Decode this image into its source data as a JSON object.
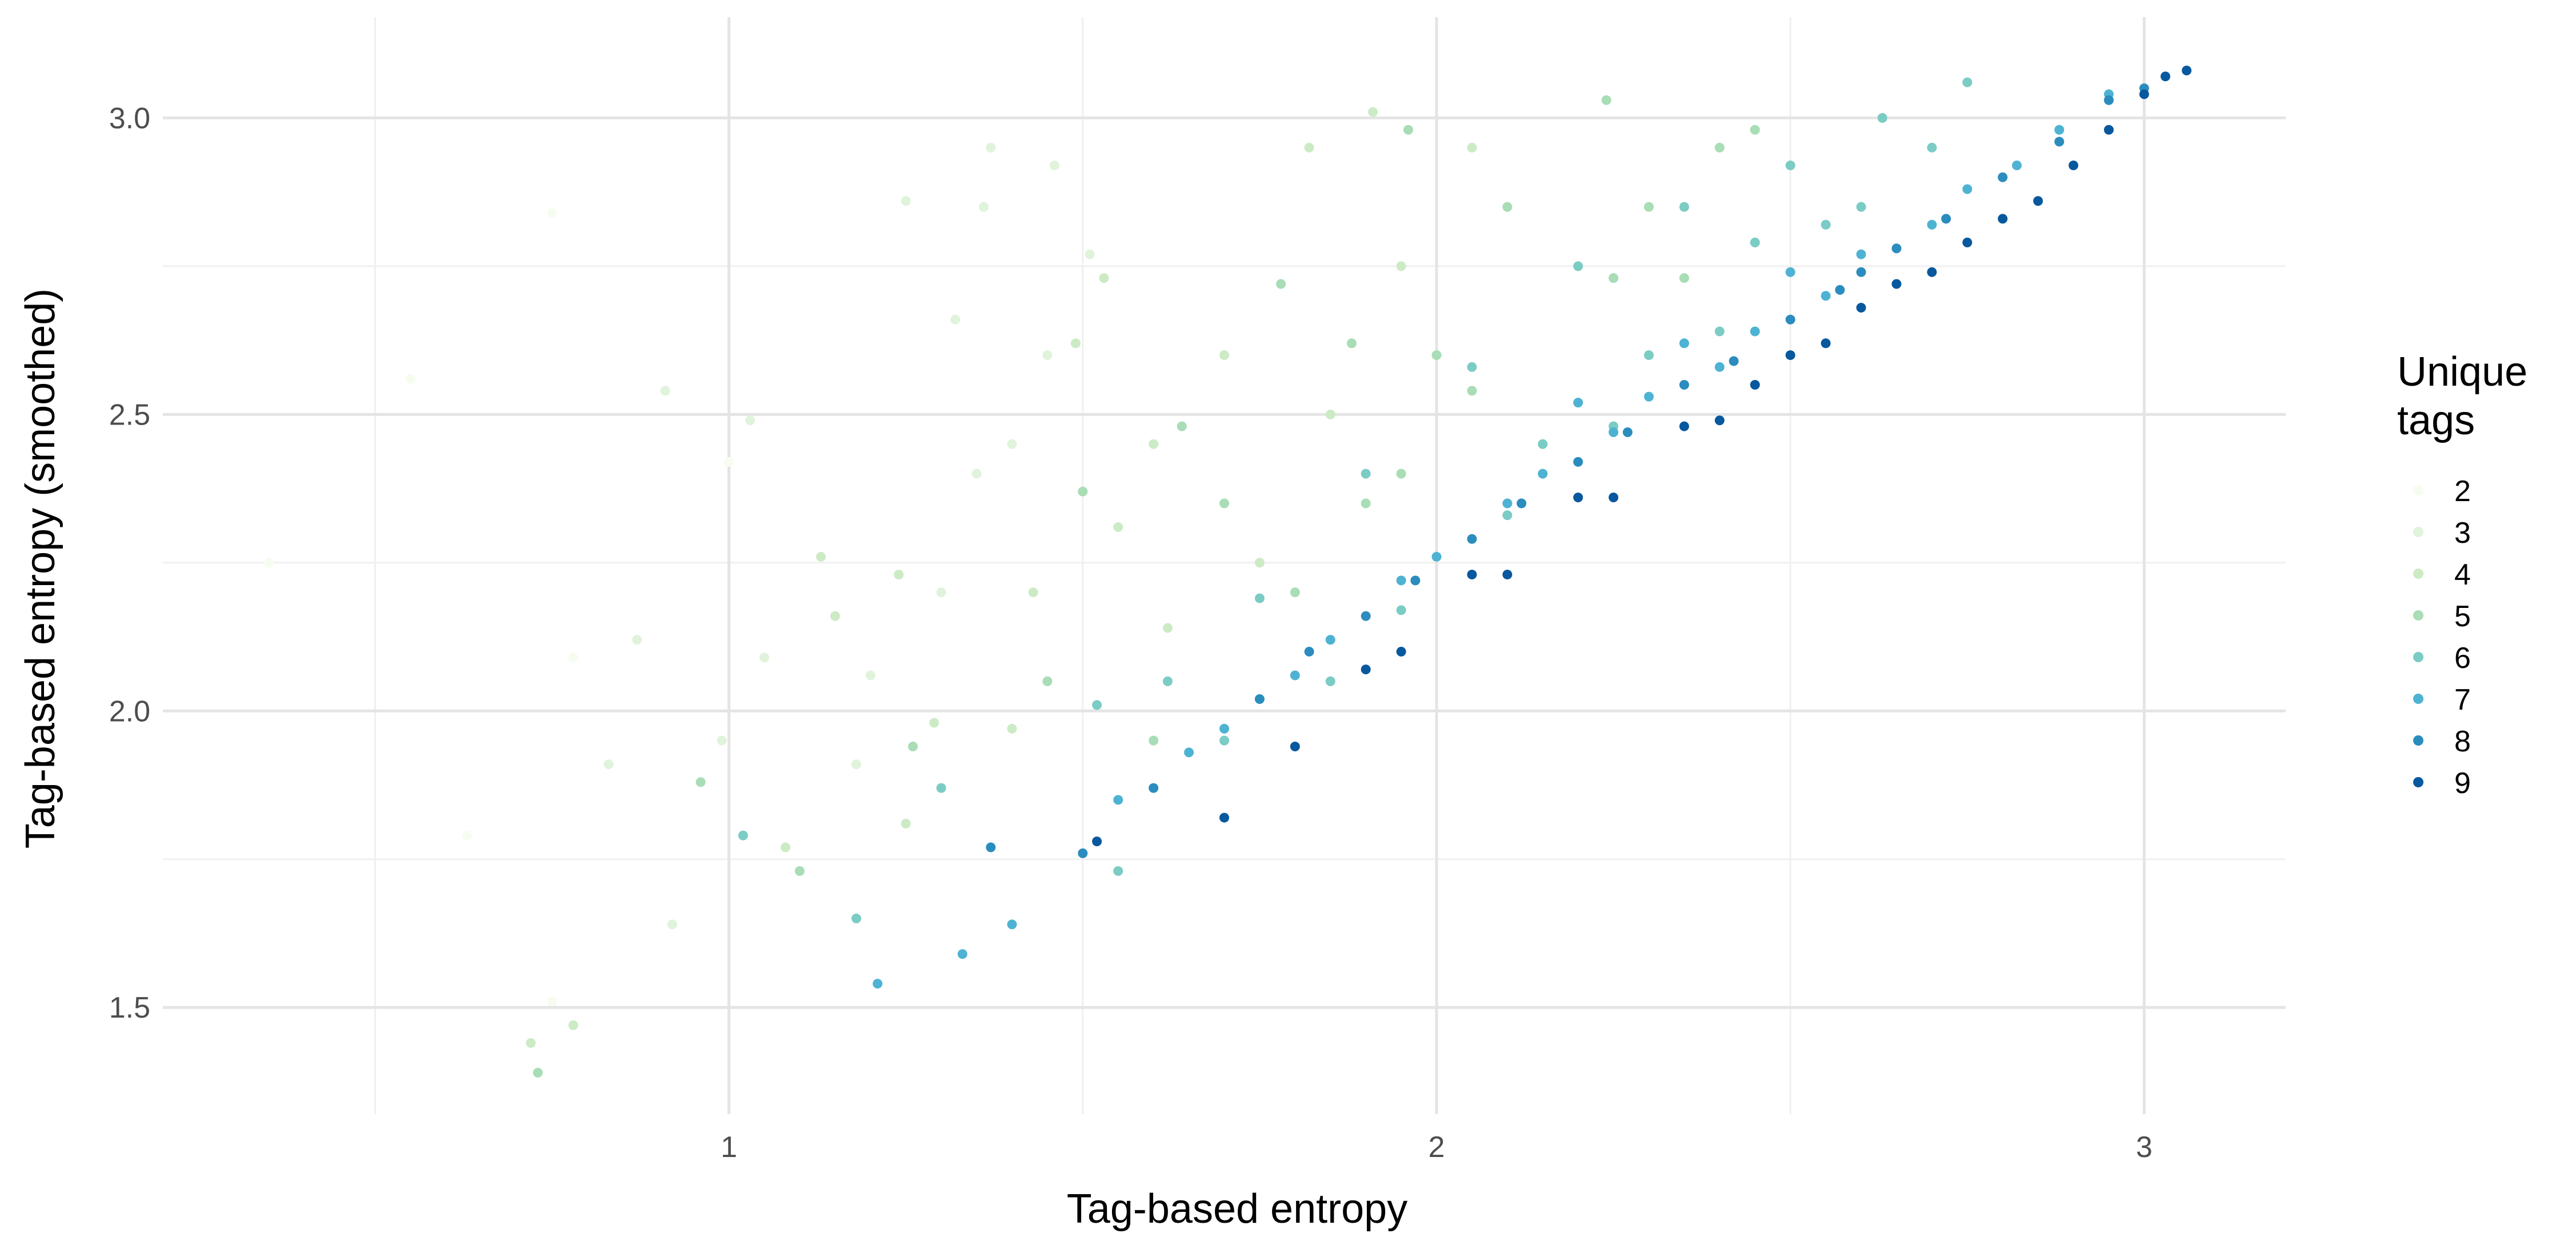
{
  "chart_data": {
    "type": "scatter",
    "title": "",
    "xlabel": "Tag-based entropy",
    "ylabel": "Tag-based entropy (smoothed)",
    "x_ticks": [
      1,
      2,
      3
    ],
    "y_ticks": [
      1.5,
      2.0,
      2.5,
      3.0
    ],
    "y_tick_labels": [
      "1.5",
      "2.0",
      "2.5",
      "3.0"
    ],
    "xlim": [
      0.2,
      3.2
    ],
    "ylim": [
      1.32,
      3.17
    ],
    "grid": true,
    "legend": {
      "title_lines": [
        "Unique",
        "tags"
      ],
      "position": "right",
      "entries": [
        "2",
        "3",
        "4",
        "5",
        "6",
        "7",
        "8",
        "9"
      ],
      "colors": [
        "#f7fcf0",
        "#e0f3db",
        "#ccebc5",
        "#a8ddb5",
        "#7bccc4",
        "#4eb3d3",
        "#2b8cbe",
        "#08589e"
      ]
    },
    "series": [
      {
        "name": "2",
        "points": [
          [
            0.35,
            2.25
          ],
          [
            0.55,
            2.56
          ],
          [
            0.75,
            2.84
          ],
          [
            0.78,
            2.09
          ],
          [
            0.63,
            1.79
          ],
          [
            0.75,
            1.51
          ],
          [
            1.0,
            2.42
          ]
        ]
      },
      {
        "name": "3",
        "points": [
          [
            0.91,
            2.54
          ],
          [
            1.03,
            2.49
          ],
          [
            1.05,
            2.09
          ],
          [
            0.87,
            2.12
          ],
          [
            0.83,
            1.91
          ],
          [
            0.92,
            1.64
          ],
          [
            1.25,
            2.86
          ],
          [
            1.37,
            2.95
          ],
          [
            1.46,
            2.92
          ],
          [
            1.36,
            2.85
          ],
          [
            1.32,
            2.66
          ],
          [
            1.35,
            2.4
          ],
          [
            1.51,
            2.77
          ],
          [
            1.4,
            2.45
          ],
          [
            1.2,
            2.06
          ],
          [
            1.18,
            1.91
          ],
          [
            0.99,
            1.95
          ],
          [
            1.3,
            2.2
          ],
          [
            1.45,
            2.6
          ]
        ]
      },
      {
        "name": "4",
        "points": [
          [
            0.78,
            1.47
          ],
          [
            0.72,
            1.44
          ],
          [
            1.13,
            2.26
          ],
          [
            1.08,
            1.77
          ],
          [
            1.15,
            2.16
          ],
          [
            1.24,
            2.23
          ],
          [
            1.29,
            1.98
          ],
          [
            1.49,
            2.62
          ],
          [
            1.53,
            2.73
          ],
          [
            1.6,
            2.45
          ],
          [
            1.7,
            2.6
          ],
          [
            1.82,
            2.95
          ],
          [
            1.91,
            3.01
          ],
          [
            1.85,
            2.5
          ],
          [
            1.62,
            2.14
          ],
          [
            1.43,
            2.2
          ],
          [
            1.55,
            2.31
          ],
          [
            1.75,
            2.25
          ],
          [
            1.95,
            2.75
          ],
          [
            2.05,
            2.95
          ],
          [
            1.4,
            1.97
          ],
          [
            1.25,
            1.81
          ]
        ]
      },
      {
        "name": "5",
        "points": [
          [
            0.73,
            1.39
          ],
          [
            0.96,
            1.88
          ],
          [
            1.1,
            1.73
          ],
          [
            1.26,
            1.94
          ],
          [
            1.5,
            2.37
          ],
          [
            1.64,
            2.48
          ],
          [
            1.78,
            2.72
          ],
          [
            1.96,
            2.98
          ],
          [
            2.24,
            3.03
          ],
          [
            2.45,
            2.98
          ],
          [
            2.1,
            2.85
          ],
          [
            2.25,
            2.73
          ],
          [
            2.05,
            2.54
          ],
          [
            1.9,
            2.35
          ],
          [
            1.8,
            2.2
          ],
          [
            1.6,
            1.95
          ],
          [
            1.45,
            2.05
          ],
          [
            2.3,
            2.85
          ],
          [
            2.4,
            2.95
          ],
          [
            2.35,
            2.73
          ],
          [
            1.95,
            2.4
          ],
          [
            1.7,
            2.35
          ],
          [
            2.0,
            2.6
          ],
          [
            1.88,
            2.62
          ]
        ]
      },
      {
        "name": "6",
        "points": [
          [
            1.02,
            1.79
          ],
          [
            1.18,
            1.65
          ],
          [
            1.3,
            1.87
          ],
          [
            1.52,
            2.01
          ],
          [
            1.62,
            2.05
          ],
          [
            1.75,
            2.19
          ],
          [
            1.9,
            2.4
          ],
          [
            2.05,
            2.58
          ],
          [
            2.2,
            2.75
          ],
          [
            2.35,
            2.85
          ],
          [
            2.5,
            2.92
          ],
          [
            2.63,
            3.0
          ],
          [
            2.75,
            3.06
          ],
          [
            2.6,
            2.85
          ],
          [
            2.4,
            2.64
          ],
          [
            2.25,
            2.48
          ],
          [
            2.1,
            2.33
          ],
          [
            1.95,
            2.17
          ],
          [
            1.85,
            2.05
          ],
          [
            1.7,
            1.95
          ],
          [
            2.45,
            2.79
          ],
          [
            2.55,
            2.82
          ],
          [
            2.3,
            2.6
          ],
          [
            1.55,
            1.73
          ],
          [
            2.15,
            2.45
          ],
          [
            2.7,
            2.95
          ]
        ]
      },
      {
        "name": "7",
        "points": [
          [
            1.21,
            1.54
          ],
          [
            1.33,
            1.59
          ],
          [
            1.4,
            1.64
          ],
          [
            1.55,
            1.85
          ],
          [
            1.7,
            1.97
          ],
          [
            1.85,
            2.12
          ],
          [
            2.0,
            2.26
          ],
          [
            2.15,
            2.4
          ],
          [
            2.3,
            2.53
          ],
          [
            2.45,
            2.64
          ],
          [
            2.6,
            2.77
          ],
          [
            2.75,
            2.88
          ],
          [
            2.88,
            2.98
          ],
          [
            2.95,
            3.04
          ],
          [
            2.7,
            2.82
          ],
          [
            2.55,
            2.7
          ],
          [
            2.4,
            2.58
          ],
          [
            2.25,
            2.47
          ],
          [
            2.1,
            2.35
          ],
          [
            1.95,
            2.22
          ],
          [
            1.8,
            2.06
          ],
          [
            1.65,
            1.93
          ],
          [
            2.5,
            2.74
          ],
          [
            2.35,
            2.62
          ],
          [
            2.2,
            2.52
          ],
          [
            2.82,
            2.92
          ]
        ]
      },
      {
        "name": "8",
        "points": [
          [
            1.37,
            1.77
          ],
          [
            1.5,
            1.76
          ],
          [
            1.6,
            1.87
          ],
          [
            1.75,
            2.02
          ],
          [
            1.9,
            2.16
          ],
          [
            2.05,
            2.29
          ],
          [
            2.2,
            2.42
          ],
          [
            2.35,
            2.55
          ],
          [
            2.5,
            2.66
          ],
          [
            2.65,
            2.78
          ],
          [
            2.8,
            2.9
          ],
          [
            2.95,
            3.03
          ],
          [
            3.0,
            3.05
          ],
          [
            2.72,
            2.83
          ],
          [
            2.57,
            2.71
          ],
          [
            2.42,
            2.59
          ],
          [
            2.27,
            2.47
          ],
          [
            2.12,
            2.35
          ],
          [
            1.97,
            2.22
          ],
          [
            1.82,
            2.1
          ],
          [
            2.88,
            2.96
          ],
          [
            2.6,
            2.74
          ]
        ]
      },
      {
        "name": "9",
        "points": [
          [
            1.52,
            1.78
          ],
          [
            1.7,
            1.82
          ],
          [
            1.8,
            1.94
          ],
          [
            1.95,
            2.1
          ],
          [
            2.1,
            2.23
          ],
          [
            2.25,
            2.36
          ],
          [
            2.4,
            2.49
          ],
          [
            2.55,
            2.62
          ],
          [
            2.7,
            2.74
          ],
          [
            2.85,
            2.86
          ],
          [
            3.0,
            3.04
          ],
          [
            3.06,
            3.08
          ],
          [
            2.95,
            2.98
          ],
          [
            2.8,
            2.83
          ],
          [
            2.65,
            2.72
          ],
          [
            2.5,
            2.6
          ],
          [
            2.35,
            2.48
          ],
          [
            2.2,
            2.36
          ],
          [
            2.05,
            2.23
          ],
          [
            1.9,
            2.07
          ],
          [
            2.75,
            2.79
          ],
          [
            2.6,
            2.68
          ],
          [
            2.45,
            2.55
          ],
          [
            2.9,
            2.92
          ],
          [
            3.03,
            3.07
          ]
        ]
      }
    ]
  }
}
